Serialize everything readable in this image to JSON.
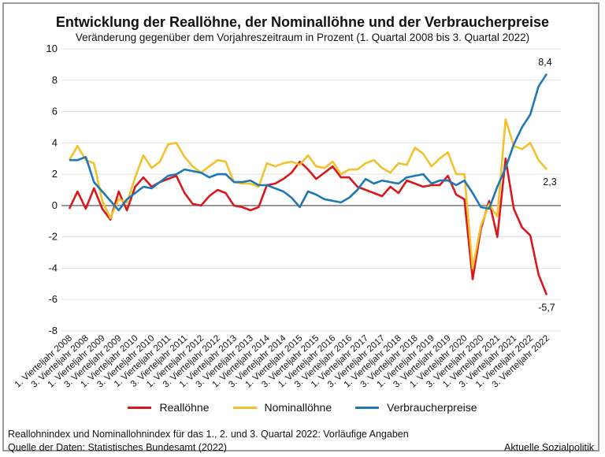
{
  "chart_data": {
    "type": "line",
    "title": "Entwicklung der Reallöhne, der Nominallöhne und der Verbraucherpreise",
    "subtitle": "Veränderung gegenüber dem Vorjahreszeitraum in Prozent (1. Quartal 2008 bis 3. Quartal 2022)",
    "xlabel": "",
    "ylabel": "",
    "ylim": [
      -8,
      10
    ],
    "yticks": [
      "10",
      "8",
      "6",
      "4",
      "2",
      "0",
      "-2",
      "-4",
      "-6",
      "-8"
    ],
    "grid": true,
    "legend_position": "bottom",
    "x_tick_labels": [
      "1. Vierteljahr 2008",
      "3. Vierteljahr 2008",
      "1. Vierteljahr 2009",
      "3. Vierteljahr 2009",
      "1. Vierteljahr 2010",
      "3. Vierteljahr 2010",
      "1. Vierteljahr 2011",
      "3. Vierteljahr 2011",
      "1. Vierteljahr 2012",
      "3. Vierteljahr 2012",
      "1. Vierteljahr 2013",
      "3. Vierteljahr 2013",
      "1. Vierteljahr 2014",
      "3. Vierteljahr 2014",
      "1. Vierteljahr 2015",
      "3. Vierteljahr 2015",
      "1. Vierteljahr 2016",
      "3. Vierteljahr 2016",
      "1. Vierteljahr 2017",
      "3. Vierteljahr 2017",
      "1. Vierteljahr 2018",
      "3. Vierteljahr 2018",
      "1. Vierteljahr 2019",
      "3. Vierteljahr 2019",
      "1. Vierteljahr 2020",
      "3. Vierteljahr 2020",
      "1. Vierteljahr 2021",
      "3. Vierteljahr 2021",
      "1. Vierteljahr 2022",
      "3. Vierteljahr 2022"
    ],
    "series": [
      {
        "name": "Reallöhne",
        "color": "#d7191c",
        "values": [
          -0.2,
          0.9,
          -0.2,
          1.1,
          -0.2,
          -0.9,
          0.9,
          -0.3,
          1.2,
          1.8,
          1.2,
          1.5,
          1.7,
          1.9,
          0.8,
          0.1,
          0.0,
          0.6,
          1.0,
          0.8,
          0.0,
          -0.1,
          -0.3,
          -0.1,
          1.3,
          1.4,
          1.7,
          2.1,
          2.8,
          2.3,
          1.7,
          2.1,
          2.5,
          1.8,
          1.8,
          1.2,
          1.0,
          0.8,
          0.6,
          1.2,
          0.8,
          1.6,
          1.4,
          1.2,
          1.3,
          1.3,
          1.9,
          0.7,
          0.4,
          -4.7,
          -1.5,
          0.3,
          -2.0,
          3.0,
          -0.2,
          -1.4,
          -1.9,
          -4.4,
          -5.7
        ]
      },
      {
        "name": "Nominallöhne",
        "color": "#f2c12e",
        "values": [
          2.9,
          3.8,
          2.9,
          2.7,
          0.3,
          -0.8,
          0.4,
          0.2,
          1.8,
          3.2,
          2.4,
          2.8,
          3.9,
          4.0,
          3.1,
          2.5,
          2.1,
          2.5,
          2.9,
          2.8,
          1.5,
          1.4,
          1.4,
          1.2,
          2.7,
          2.5,
          2.7,
          2.8,
          2.6,
          3.2,
          2.5,
          2.4,
          2.8,
          2.0,
          2.3,
          2.3,
          2.7,
          2.9,
          2.4,
          2.1,
          2.7,
          2.6,
          3.7,
          3.3,
          2.5,
          3.0,
          3.4,
          2.0,
          2.0,
          -4.0,
          -1.3,
          0.1,
          -0.7,
          5.5,
          3.8,
          3.6,
          4.0,
          2.9,
          2.3
        ]
      },
      {
        "name": "Verbraucherpreise",
        "color": "#1f78b4",
        "values": [
          2.9,
          2.9,
          3.1,
          1.5,
          0.9,
          0.3,
          -0.3,
          0.4,
          0.8,
          1.2,
          1.1,
          1.5,
          1.9,
          2.0,
          2.3,
          2.2,
          2.1,
          1.8,
          2.0,
          2.0,
          1.5,
          1.5,
          1.6,
          1.3,
          1.3,
          1.1,
          0.9,
          0.5,
          -0.1,
          0.9,
          0.7,
          0.4,
          0.3,
          0.2,
          0.5,
          1.0,
          1.7,
          1.4,
          1.6,
          1.5,
          1.4,
          1.8,
          1.9,
          2.0,
          1.4,
          1.6,
          1.6,
          1.3,
          1.6,
          0.8,
          -0.1,
          -0.2,
          1.2,
          2.4,
          3.9,
          5.0,
          5.8,
          7.6,
          8.4
        ]
      }
    ],
    "annotations": [
      {
        "series": "Verbraucherpreise",
        "text": "8,4"
      },
      {
        "series": "Nominallöhne",
        "text": "2,3"
      },
      {
        "series": "Reallöhne",
        "text": "-5,7"
      }
    ]
  },
  "footer": {
    "note": "Reallohnindex und Nominallohnindex für das 1., 2. und 3. Quartal 2022: Vorläufige Angaben",
    "source": "Quelle der Daten: Statistisches Bundesamt (2022)",
    "credit": "Aktuelle Sozialpolitik"
  }
}
